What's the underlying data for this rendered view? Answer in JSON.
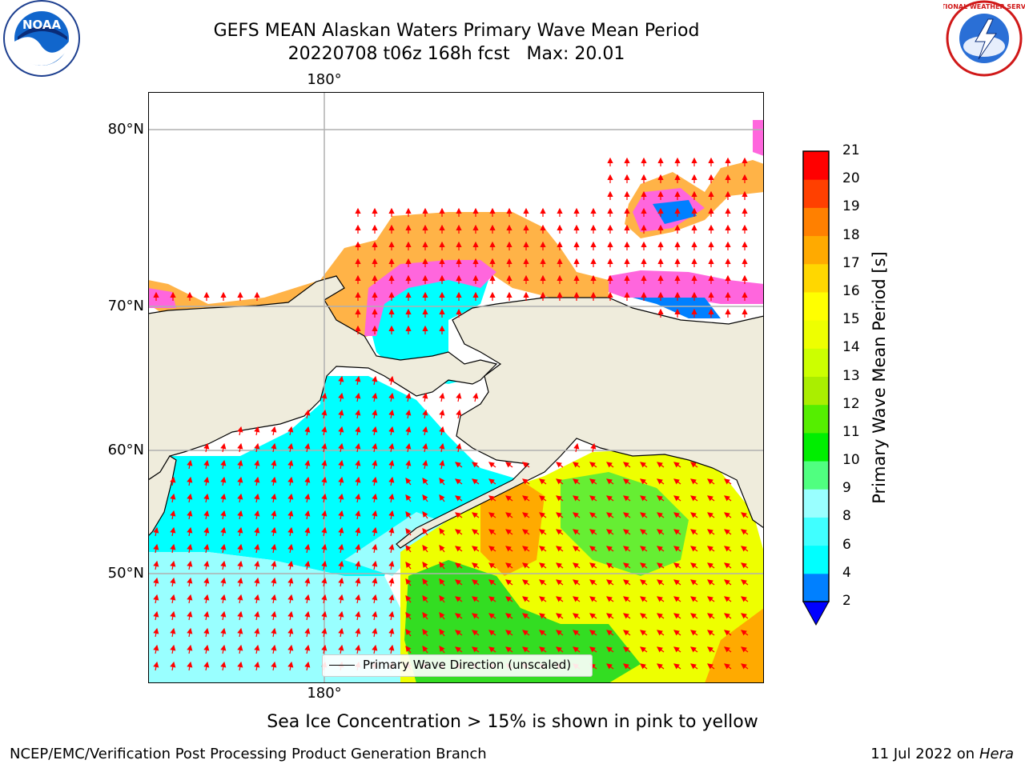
{
  "title": {
    "line1": "GEFS MEAN Alaskan Waters Primary Wave Mean Period",
    "line2": "20220708 t06z 168h fcst   Max: 20.01"
  },
  "map": {
    "lon_labels": {
      "top": "180°",
      "bottom": "180°"
    },
    "lat_labels": [
      "80°N",
      "70°N",
      "60°N",
      "50°N"
    ],
    "legend": "Primary Wave Direction (unscaled)",
    "colors": {
      "land": "#efecdc",
      "ocean_short": "#00ffff",
      "ocean_mid": "#99ffff",
      "arrow": "#ff0000",
      "grid": "#b0b0b0"
    }
  },
  "colorbar": {
    "title": "Primary Wave Mean Period [s]",
    "ticks": [
      "2",
      "4",
      "6",
      "8",
      "9",
      "10",
      "11",
      "12",
      "13",
      "14",
      "15",
      "16",
      "17",
      "18",
      "19",
      "20",
      "21"
    ],
    "colors": [
      "#0000ff",
      "#0080ff",
      "#00ffff",
      "#40ffff",
      "#99ffff",
      "#50ff80",
      "#00ee00",
      "#55ee00",
      "#aaee00",
      "#ccff00",
      "#eeff00",
      "#ffff00",
      "#ffd700",
      "#ffaa00",
      "#ff8000",
      "#ff4000",
      "#ff0000"
    ]
  },
  "footer": {
    "note": "Sea Ice Concentration > 15% is shown in pink to yellow",
    "left": "NCEP/EMC/Verification Post Processing Product Generation Branch",
    "right_date": "11 Jul 2022 on ",
    "right_machine": "Hera"
  },
  "logos": {
    "noaa": "NOAA",
    "nws": "NATIONAL WEATHER SERVICE"
  }
}
